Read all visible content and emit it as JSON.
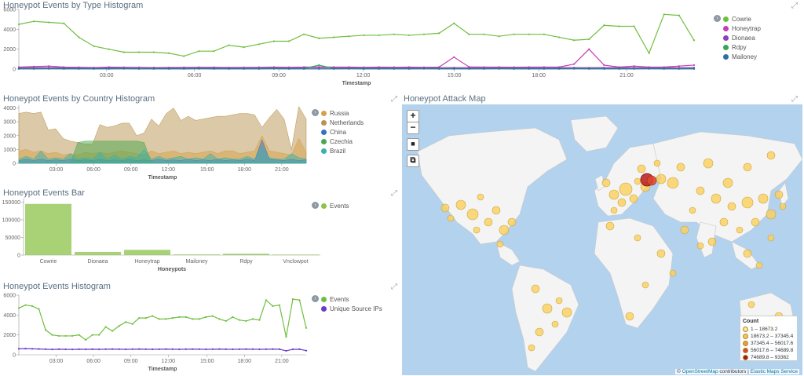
{
  "panels": {
    "type_histogram": {
      "title": "Honeypot Events by Type Histogram",
      "xlabel": "Timestamp",
      "legend": [
        {
          "label": "Cowrie",
          "color": "#6fbf3f"
        },
        {
          "label": "Honeytrap",
          "color": "#c43eb4"
        },
        {
          "label": "Dionaea",
          "color": "#8e3fb9"
        },
        {
          "label": "Rdpy",
          "color": "#3aa655"
        },
        {
          "label": "Mailoney",
          "color": "#2c6ea8"
        }
      ]
    },
    "country_histogram": {
      "title": "Honeypot Events by Country Histogram",
      "xlabel": "Timestamp",
      "legend": [
        {
          "label": "Russia",
          "color": "#d7a14a"
        },
        {
          "label": "Netherlands",
          "color": "#b8944f"
        },
        {
          "label": "China",
          "color": "#3b6fc4"
        },
        {
          "label": "Czechia",
          "color": "#4aa84c"
        },
        {
          "label": "Brazil",
          "color": "#39b1ad"
        }
      ]
    },
    "events_bar": {
      "title": "Honeypot Events Bar",
      "xlabel": "Honeypots",
      "legend": [
        {
          "label": "Events",
          "color": "#8cc34a"
        }
      ]
    },
    "events_histogram": {
      "title": "Honeypot Events Histogram",
      "xlabel": "Timestamp",
      "legend": [
        {
          "label": "Events",
          "color": "#6fbf3f"
        },
        {
          "label": "Unique Source IPs",
          "color": "#6a3cc9"
        }
      ]
    },
    "attack_map": {
      "title": "Honeypot Attack Map",
      "zoom_in": "+",
      "zoom_out": "−",
      "fit": "■",
      "crop": "⧉",
      "legend_title": "Count",
      "legend_items": [
        {
          "label": "1 – 18673.2",
          "color": "#fde59a"
        },
        {
          "label": "18673.2 – 37345.4",
          "color": "#f8c553"
        },
        {
          "label": "37345.4 – 56017.6",
          "color": "#f39a3a"
        },
        {
          "label": "56017.6 – 74689.8",
          "color": "#e0462b"
        },
        {
          "label": "74689.8 – 93362",
          "color": "#a5141e"
        }
      ],
      "attribution_prefix": "©",
      "attribution_link1": "OpenStreetMap",
      "attribution_mid": " contributors | ",
      "attribution_link2": "Elastic Maps Service"
    }
  },
  "chart_data": [
    {
      "type": "line",
      "title": "Honeypot Events by Type Histogram",
      "xlabel": "Timestamp",
      "x_ticks": [
        "03:00",
        "06:00",
        "09:00",
        "12:00",
        "15:00",
        "18:00",
        "21:00"
      ],
      "y_ticks": [
        "6000",
        "4000",
        "2000",
        "0"
      ],
      "ylim": [
        0,
        6000
      ],
      "series": [
        {
          "name": "Cowrie",
          "values": [
            4500,
            4800,
            4700,
            4600,
            3200,
            2300,
            2000,
            1700,
            1700,
            1700,
            1600,
            1300,
            1800,
            1800,
            2400,
            2200,
            2500,
            2800,
            2800,
            3500,
            3100,
            3200,
            3300,
            3400,
            3400,
            3500,
            3400,
            3500,
            3600,
            4600,
            3500,
            3500,
            3300,
            3500,
            3500,
            3500,
            3200,
            2900,
            3000,
            4400,
            4300,
            4300,
            1600,
            5500,
            5400,
            2900
          ]
        },
        {
          "name": "Honeytrap",
          "values": [
            200,
            250,
            300,
            200,
            180,
            150,
            200,
            180,
            170,
            150,
            160,
            170,
            180,
            180,
            160,
            170,
            180,
            200,
            180,
            200,
            220,
            200,
            200,
            180,
            200,
            190,
            200,
            180,
            200,
            1200,
            220,
            200,
            200,
            190,
            200,
            200,
            200,
            500,
            2000,
            400,
            200,
            300,
            200,
            200,
            300,
            400
          ]
        },
        {
          "name": "Dionaea",
          "values": [
            150,
            160,
            150,
            140,
            140,
            130,
            140,
            150,
            150,
            140,
            130,
            140,
            150,
            140,
            130,
            140,
            150,
            150,
            140,
            150,
            160,
            150,
            140,
            150,
            140,
            150,
            140,
            150,
            140,
            150,
            140,
            150,
            140,
            150,
            140,
            150,
            140,
            150,
            140,
            150,
            140,
            150,
            140,
            150,
            140,
            150
          ]
        },
        {
          "name": "Rdpy",
          "values": [
            50,
            50,
            60,
            50,
            50,
            50,
            50,
            60,
            50,
            50,
            50,
            50,
            60,
            50,
            50,
            50,
            50,
            60,
            50,
            50,
            400,
            50,
            50,
            60,
            50,
            50,
            50,
            50,
            60,
            50,
            50,
            50,
            50,
            60,
            50,
            50,
            50,
            50,
            60,
            50,
            50,
            50,
            50,
            60,
            50,
            50
          ]
        },
        {
          "name": "Mailoney",
          "values": [
            20,
            20,
            25,
            20,
            20,
            20,
            20,
            25,
            20,
            20,
            20,
            20,
            25,
            20,
            20,
            20,
            20,
            25,
            20,
            20,
            20,
            20,
            25,
            20,
            20,
            20,
            20,
            25,
            20,
            20,
            20,
            20,
            25,
            20,
            20,
            20,
            20,
            25,
            20,
            20,
            20,
            20,
            25,
            20,
            20,
            20
          ]
        }
      ]
    },
    {
      "type": "area",
      "title": "Honeypot Events by Country Histogram",
      "xlabel": "Timestamp",
      "x_ticks": [
        "03:00",
        "06:00",
        "09:00",
        "12:00",
        "15:00",
        "18:00",
        "21:00"
      ],
      "y_ticks": [
        "4000",
        "3000",
        "2000",
        "1000",
        "0"
      ],
      "ylim": [
        0,
        4200
      ],
      "series": [
        {
          "name": "Netherlands",
          "values": [
            3600,
            3700,
            3600,
            3700,
            2400,
            2500,
            1800,
            1600,
            1500,
            1400,
            1400,
            2800,
            2600,
            2700,
            2900,
            2900,
            2000,
            2200,
            3200,
            2700,
            3600,
            4000,
            3100,
            3400,
            3100,
            3200,
            3300,
            3400,
            3400,
            3500,
            3600,
            3600,
            3500,
            2600,
            3300,
            3900,
            3200,
            1000,
            4100,
            3200
          ]
        },
        {
          "name": "Russia",
          "values": [
            900,
            1000,
            800,
            900,
            700,
            800,
            600,
            700,
            600,
            800,
            700,
            800,
            700,
            800,
            900,
            800,
            700,
            600,
            900,
            700,
            800,
            900,
            700,
            800,
            700,
            800,
            900,
            700,
            900,
            900,
            700,
            800,
            900,
            2000,
            900,
            800,
            700,
            600,
            1800,
            800
          ]
        },
        {
          "name": "China",
          "values": [
            200,
            300,
            200,
            300,
            200,
            250,
            200,
            300,
            200,
            250,
            200,
            300,
            200,
            250,
            200,
            300,
            200,
            250,
            200,
            300,
            200,
            250,
            200,
            300,
            200,
            250,
            200,
            300,
            200,
            250,
            200,
            300,
            200,
            1700,
            300,
            250,
            200,
            300,
            200,
            250
          ]
        },
        {
          "name": "Czechia",
          "values": [
            0,
            0,
            0,
            0,
            0,
            0,
            0,
            0,
            1500,
            1600,
            1600,
            1600,
            1600,
            1600,
            1600,
            1600,
            1600,
            1500,
            0,
            0,
            0,
            0,
            0,
            0,
            0,
            0,
            0,
            0,
            0,
            0,
            0,
            0,
            0,
            0,
            0,
            0,
            0,
            0,
            0,
            0
          ]
        },
        {
          "name": "Brazil",
          "values": [
            300,
            500,
            300,
            900,
            300,
            400,
            300,
            700,
            300,
            400,
            300,
            800,
            300,
            600,
            300,
            500,
            400,
            1000,
            300,
            500,
            300,
            400,
            500,
            300,
            400,
            300,
            700,
            300,
            400,
            300,
            300,
            500,
            300,
            1200,
            400,
            300,
            300,
            700,
            400,
            300
          ]
        }
      ]
    },
    {
      "type": "bar",
      "title": "Honeypot Events Bar",
      "xlabel": "Honeypots",
      "categories": [
        "Cowrie",
        "Dionaea",
        "Honeytrap",
        "Mailoney",
        "Rdpy",
        "Vnclowpot"
      ],
      "y_ticks": [
        "150000",
        "100000",
        "50000",
        "0"
      ],
      "ylim": [
        0,
        160000
      ],
      "series": [
        {
          "name": "Events",
          "values": [
            145000,
            9000,
            15000,
            2000,
            4000,
            1500
          ]
        }
      ]
    },
    {
      "type": "line",
      "title": "Honeypot Events Histogram",
      "xlabel": "Timestamp",
      "x_ticks": [
        "03:00",
        "06:00",
        "09:00",
        "12:00",
        "15:00",
        "18:00",
        "21:00"
      ],
      "y_ticks": [
        "6000",
        "4000",
        "2000",
        "0"
      ],
      "ylim": [
        0,
        6000
      ],
      "series": [
        {
          "name": "Events",
          "values": [
            4700,
            5000,
            4900,
            4600,
            2500,
            2000,
            1900,
            1900,
            1900,
            2000,
            1500,
            2000,
            2000,
            2800,
            2400,
            2900,
            3300,
            3100,
            3700,
            3700,
            3900,
            3600,
            3600,
            3700,
            3800,
            3800,
            3600,
            3600,
            3800,
            3900,
            3600,
            3400,
            3800,
            3500,
            3400,
            3600,
            3500,
            5500,
            4900,
            5000,
            1800,
            5600,
            5500,
            2700
          ]
        },
        {
          "name": "Unique Source IPs",
          "values": [
            600,
            620,
            600,
            580,
            560,
            540,
            560,
            550,
            540,
            560,
            550,
            560,
            550,
            560,
            570,
            560,
            550,
            560,
            570,
            560,
            550,
            560,
            570,
            560,
            550,
            560,
            570,
            560,
            550,
            560,
            570,
            560,
            550,
            560,
            570,
            560,
            550,
            560,
            570,
            560,
            400,
            550,
            560,
            420
          ]
        }
      ]
    }
  ]
}
